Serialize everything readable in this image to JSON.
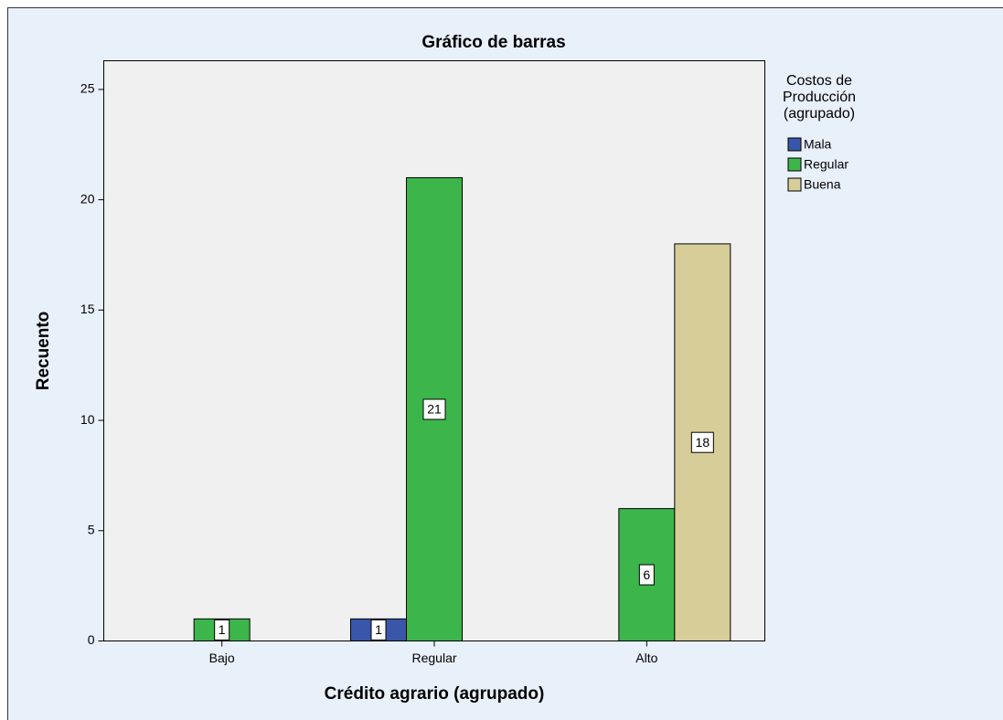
{
  "chart_data": {
    "type": "bar",
    "title": "Gráfico de barras",
    "x_label": "Crédito agrario (agrupado)",
    "y_label": "Recuento",
    "legend_title": [
      "Costos de",
      "Producción",
      "(agrupado)"
    ],
    "categories": [
      "Bajo",
      "Regular",
      "Alto"
    ],
    "series": [
      {
        "name": "Mala",
        "color": "#3a56a8",
        "values": [
          null,
          1,
          null
        ]
      },
      {
        "name": "Regular",
        "color": "#3cb54a",
        "values": [
          1,
          21,
          6
        ]
      },
      {
        "name": "Buena",
        "color": "#d6cd98",
        "values": [
          null,
          null,
          18
        ]
      }
    ],
    "ylim": [
      0,
      26.3
    ],
    "yticks": [
      0,
      5,
      10,
      15,
      20,
      25
    ],
    "grid": false,
    "legend": "right"
  }
}
